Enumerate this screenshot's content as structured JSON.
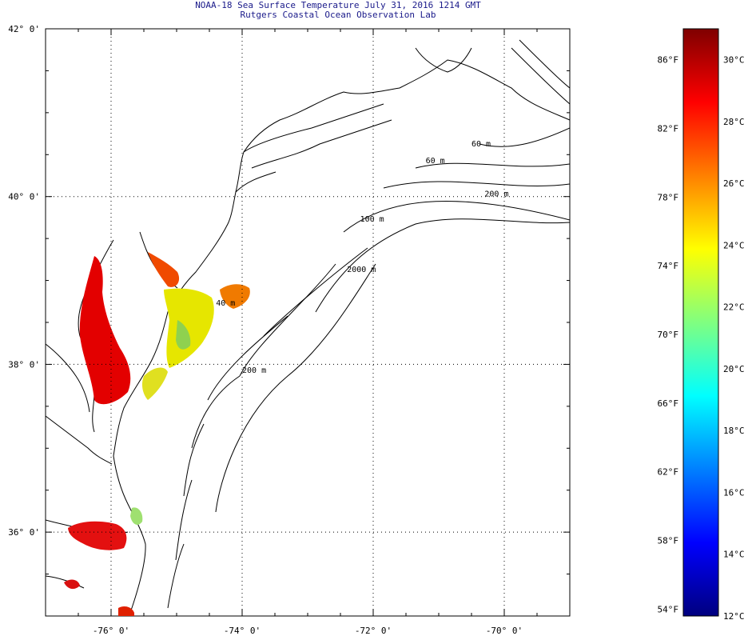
{
  "title": {
    "line1": "NOAA-18 Sea Surface Temperature July 31, 2016 1214 GMT",
    "line2": "Rutgers Coastal Ocean Observation Lab"
  },
  "map": {
    "lon_range": [
      -77.0,
      -69.0
    ],
    "lat_range": [
      35.0,
      42.0
    ],
    "lon_ticks": [
      {
        "value": -76,
        "label": "-76° 0'"
      },
      {
        "value": -74,
        "label": "-74° 0'"
      },
      {
        "value": -72,
        "label": "-72° 0'"
      },
      {
        "value": -70,
        "label": "-70° 0'"
      }
    ],
    "lat_ticks": [
      {
        "value": 42,
        "label": "42° 0'"
      },
      {
        "value": 40,
        "label": "40° 0'"
      },
      {
        "value": 38,
        "label": "38° 0'"
      },
      {
        "value": 36,
        "label": "36° 0'"
      }
    ],
    "grid": "dotted",
    "coast_color": "#000000",
    "isobath_labels": [
      {
        "text": "60 m",
        "lon": -70.5,
        "lat": 40.6
      },
      {
        "text": "60 m",
        "lon": -71.2,
        "lat": 40.4
      },
      {
        "text": "200 m",
        "lon": -70.3,
        "lat": 40.0
      },
      {
        "text": "100 m",
        "lon": -72.2,
        "lat": 39.7
      },
      {
        "text": "2000 m",
        "lon": -72.4,
        "lat": 39.1
      },
      {
        "text": "40 m",
        "lon": -74.4,
        "lat": 38.7
      },
      {
        "text": "200 m",
        "lon": -74.0,
        "lat": 37.9
      }
    ]
  },
  "colorbar": {
    "min_c": 12,
    "max_c": 31,
    "celsius_ticks": [
      {
        "value": 30,
        "label": "30°C"
      },
      {
        "value": 28,
        "label": "28°C"
      },
      {
        "value": 26,
        "label": "26°C"
      },
      {
        "value": 24,
        "label": "24°C"
      },
      {
        "value": 22,
        "label": "22°C"
      },
      {
        "value": 20,
        "label": "20°C"
      },
      {
        "value": 18,
        "label": "18°C"
      },
      {
        "value": 16,
        "label": "16°C"
      },
      {
        "value": 14,
        "label": "14°C"
      },
      {
        "value": 12,
        "label": "12°C"
      }
    ],
    "fahrenheit_ticks": [
      {
        "value": 86,
        "label": "86°F"
      },
      {
        "value": 82,
        "label": "82°F"
      },
      {
        "value": 78,
        "label": "78°F"
      },
      {
        "value": 74,
        "label": "74°F"
      },
      {
        "value": 70,
        "label": "70°F"
      },
      {
        "value": 66,
        "label": "66°F"
      },
      {
        "value": 62,
        "label": "62°F"
      },
      {
        "value": 58,
        "label": "58°F"
      },
      {
        "value": 54,
        "label": "54°F"
      }
    ],
    "colors": [
      "#00007f",
      "#0000ff",
      "#0080ff",
      "#00ffff",
      "#80ff80",
      "#ffff00",
      "#ff8000",
      "#ff0000",
      "#7f0000"
    ]
  }
}
